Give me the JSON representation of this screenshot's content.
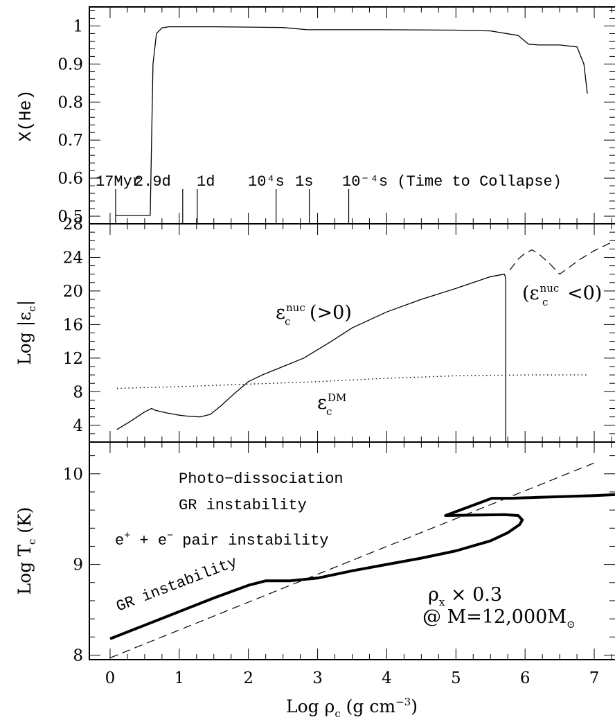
{
  "chart_data": [
    {
      "type": "line",
      "panel": "top",
      "xlim": [
        -0.3,
        7.3
      ],
      "ylim": [
        0.48,
        1.05
      ],
      "ylabel": "X(He)",
      "y_ticks": [
        "0.5",
        "0.6",
        "0.7",
        "0.8",
        "0.9",
        "1"
      ],
      "series": [
        {
          "x": [
            0.08,
            0.58,
            0.6,
            0.62,
            0.67,
            0.75,
            0.85,
            1.0,
            1.5,
            2.0,
            2.5,
            2.85,
            3.0,
            4.0,
            5.0,
            5.5,
            5.9,
            6.05,
            6.2,
            6.5,
            6.75,
            6.85,
            6.9
          ],
          "y": [
            0.502,
            0.502,
            0.7,
            0.9,
            0.98,
            0.995,
            0.998,
            0.998,
            0.998,
            0.997,
            0.996,
            0.99,
            0.99,
            0.99,
            0.989,
            0.987,
            0.975,
            0.952,
            0.95,
            0.95,
            0.945,
            0.9,
            0.822
          ]
        }
      ],
      "time_markers": [
        {
          "label": "17Myr",
          "x": 0.08
        },
        {
          "label": "2.9d",
          "x": 1.05
        },
        {
          "label": "1d",
          "x": 1.26
        },
        {
          "label": "10⁴s",
          "x": 2.4
        },
        {
          "label": "1s",
          "x": 2.88
        },
        {
          "label": "10⁻⁴s (Time to Collapse)",
          "x": 3.45
        }
      ]
    },
    {
      "type": "line",
      "panel": "middle",
      "xlim": [
        -0.3,
        7.3
      ],
      "ylim": [
        2,
        28
      ],
      "ylabel_parts": {
        "pre": "Log |ε",
        "sub": "c",
        "post": "|"
      },
      "y_ticks": [
        "4",
        "8",
        "12",
        "16",
        "20",
        "24",
        "28"
      ],
      "series": [
        {
          "name": "nuc_positive",
          "label_parts": {
            "main": "ε",
            "sup": "nuc",
            "sub": "c",
            "post": "(>0)"
          },
          "x": [
            0.1,
            0.3,
            0.5,
            0.6,
            0.65,
            0.8,
            1.0,
            1.1,
            1.3,
            1.45,
            1.6,
            1.8,
            2.0,
            2.2,
            2.5,
            2.8,
            3.0,
            3.2,
            3.5,
            4.0,
            4.5,
            5.0,
            5.5,
            5.7,
            5.72,
            5.72
          ],
          "y": [
            3.5,
            4.5,
            5.6,
            6.0,
            5.8,
            5.5,
            5.2,
            5.1,
            5.0,
            5.3,
            6.3,
            7.8,
            9.2,
            10.0,
            11.0,
            12.0,
            13.0,
            14.0,
            15.6,
            17.5,
            19.0,
            20.3,
            21.7,
            22.0,
            21.6,
            2.0
          ]
        },
        {
          "name": "nuc_negative",
          "label_parts": {
            "pre": "(ε",
            "sup": "nuc",
            "sub": "c",
            "post": "<0)"
          },
          "style": "dashed",
          "x": [
            5.78,
            5.9,
            6.0,
            6.1,
            6.2,
            6.35,
            6.5,
            6.6,
            6.8,
            7.0,
            7.2,
            7.3
          ],
          "y": [
            22.5,
            23.8,
            24.5,
            24.9,
            24.4,
            23.3,
            22.0,
            22.6,
            23.8,
            24.8,
            25.6,
            26.0
          ]
        },
        {
          "name": "DM",
          "label_parts": {
            "main": "ε",
            "sup": "DM",
            "sub": "c"
          },
          "style": "dotted",
          "x": [
            0.1,
            1.0,
            2.0,
            3.0,
            4.0,
            4.7,
            5.0,
            6.0,
            6.9
          ],
          "y": [
            8.4,
            8.6,
            8.9,
            9.2,
            9.6,
            9.8,
            9.9,
            10.0,
            10.0
          ]
        }
      ]
    },
    {
      "type": "line",
      "panel": "bottom",
      "xlim": [
        -0.3,
        7.3
      ],
      "ylim": [
        7.95,
        10.35
      ],
      "x_ticks": [
        "0",
        "1",
        "2",
        "3",
        "4",
        "5",
        "6",
        "7"
      ],
      "xlabel_parts": {
        "pre": "Log ρ",
        "sub": "c",
        "post": " (g cm",
        "sup": "−3",
        "end": ")"
      },
      "ylabel_parts": {
        "pre": "Log T",
        "sub": "c",
        "post": " (K)"
      },
      "y_ticks": [
        "8",
        "9",
        "10"
      ],
      "series": [
        {
          "name": "track",
          "style": "thick",
          "x": [
            0.0,
            0.5,
            1.0,
            1.5,
            2.0,
            2.25,
            2.6,
            3.0,
            3.5,
            4.0,
            4.5,
            5.0,
            5.5,
            5.75,
            5.92,
            5.96,
            5.9,
            5.7,
            4.85,
            5.52,
            5.8,
            6.2,
            6.6,
            7.0,
            7.3
          ],
          "y": [
            8.18,
            8.33,
            8.48,
            8.63,
            8.77,
            8.82,
            8.82,
            8.85,
            8.93,
            9.0,
            9.07,
            9.15,
            9.26,
            9.35,
            9.44,
            9.49,
            9.54,
            9.55,
            9.54,
            9.73,
            9.73,
            9.74,
            9.75,
            9.76,
            9.77
          ]
        },
        {
          "name": "GR_boundary",
          "style": "dashed",
          "x": [
            0.0,
            7.0
          ],
          "y": [
            7.97,
            10.12
          ]
        }
      ],
      "annotations": [
        "Photo−dissociation",
        "GR instability",
        "GR instability"
      ],
      "pair_label_parts": {
        "a": "e",
        "a_sup": "+",
        "mid": " + e",
        "b_sup": "−",
        "rest": " pair instability"
      },
      "rho_label_parts": {
        "pre": "ρ",
        "sub": "x",
        "post": " × 0.3"
      },
      "mass_label_parts": {
        "pre": "@ M=12,000M",
        "sub": "⊙"
      }
    }
  ]
}
